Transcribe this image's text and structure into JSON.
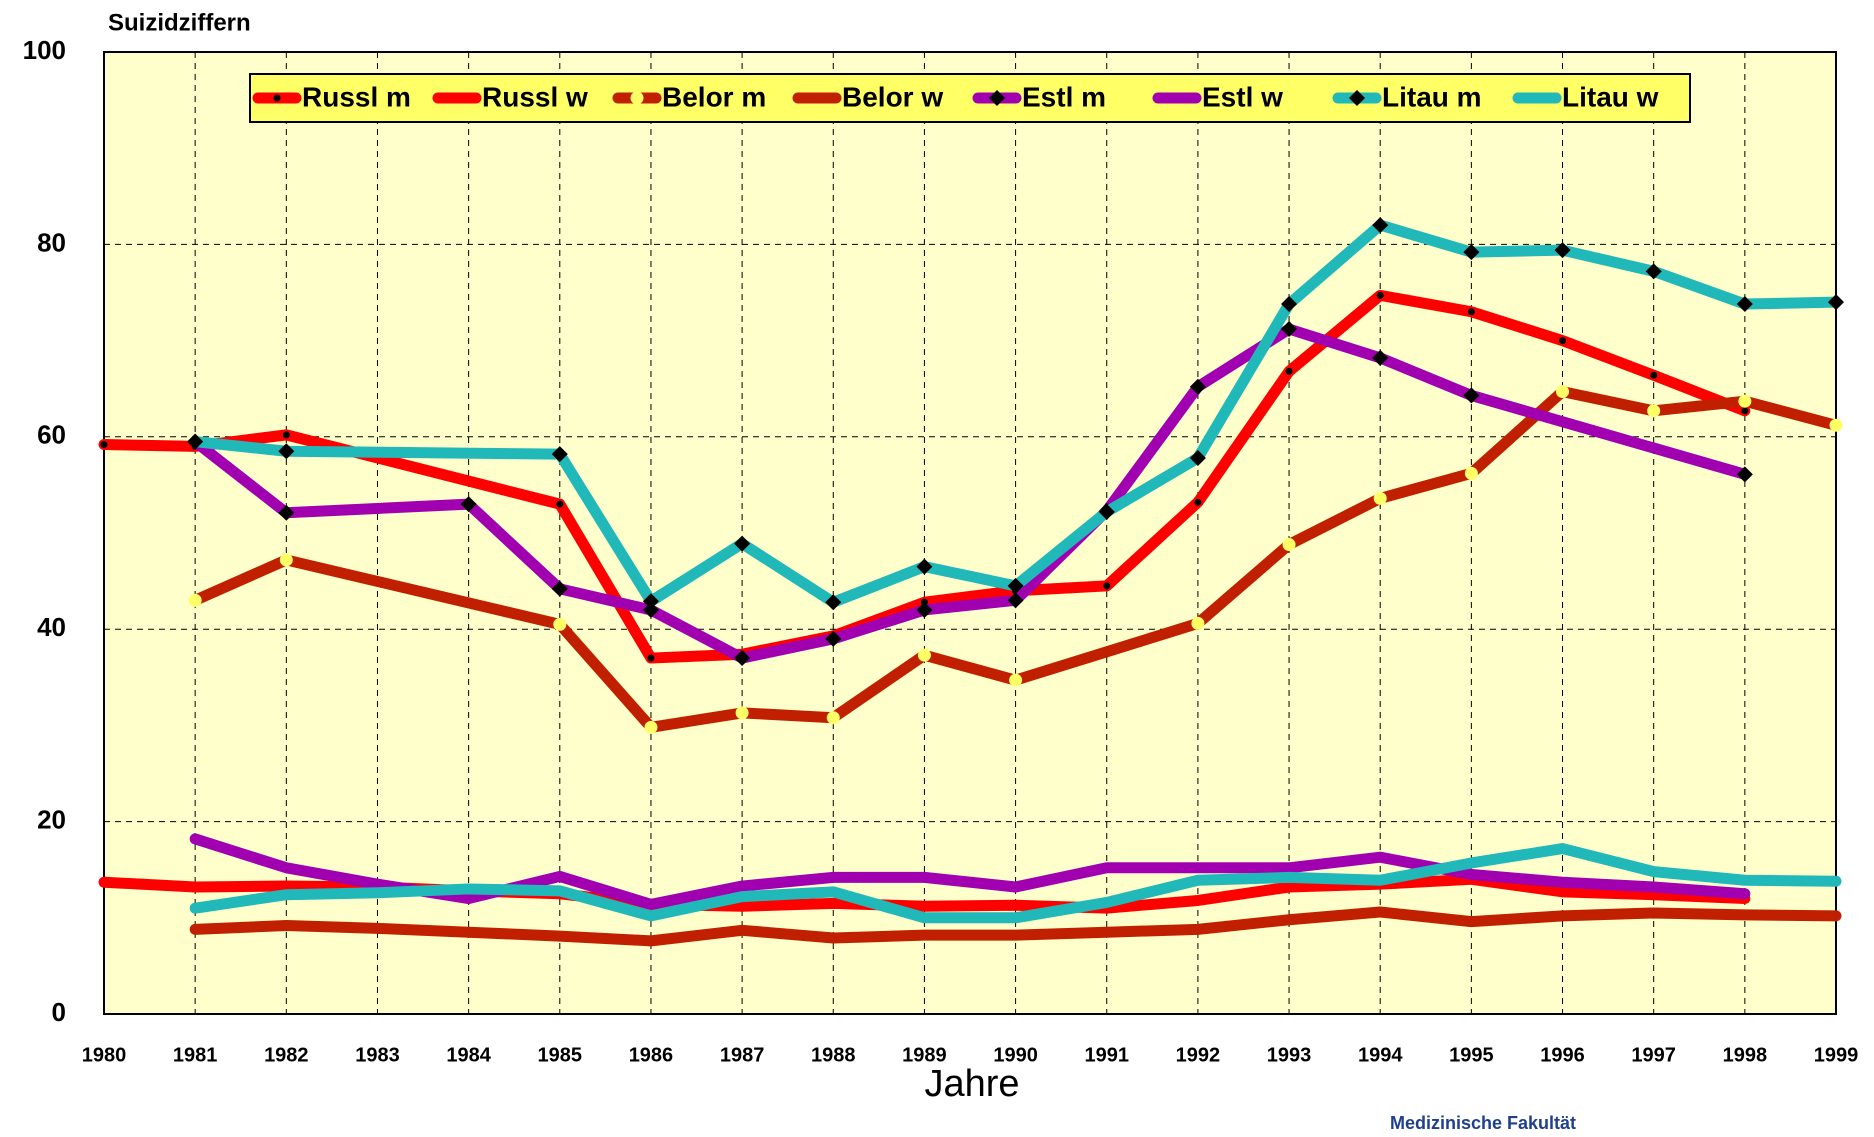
{
  "chart_data": {
    "type": "line",
    "title": "Suizidziffern",
    "xlabel": "Jahre",
    "footer": "Medizinische Fakultät",
    "xlim": [
      1980,
      1999
    ],
    "xticks": [
      1980,
      1981,
      1982,
      1983,
      1984,
      1985,
      1986,
      1987,
      1988,
      1989,
      1990,
      1991,
      1992,
      1993,
      1994,
      1995,
      1996,
      1997,
      1998,
      1999
    ],
    "ylim": [
      0,
      100
    ],
    "yticks": [
      0,
      20,
      40,
      60,
      80,
      100
    ],
    "grid": true,
    "legend": "top",
    "series": [
      {
        "name": "Russl m",
        "color": "#ff0000",
        "marker": "dot",
        "marker_color": "#000000",
        "x": [
          1980,
          1981,
          1982,
          1985,
          1986,
          1987,
          1988,
          1989,
          1990,
          1991,
          1992,
          1993,
          1994,
          1995,
          1996,
          1997,
          1998
        ],
        "values": [
          59.2,
          59,
          60.2,
          53,
          37,
          37.4,
          39.3,
          42.8,
          44,
          44.5,
          53.2,
          66.8,
          74.7,
          73,
          70,
          66.4,
          62.7
        ]
      },
      {
        "name": "Russl w",
        "color": "#ff0000",
        "x": [
          1980,
          1981,
          1982,
          1983,
          1984,
          1985,
          1986,
          1987,
          1988,
          1989,
          1990,
          1991,
          1992,
          1993,
          1994,
          1995,
          1996,
          1997,
          1998
        ],
        "values": [
          13.7,
          13.2,
          13.3,
          13.2,
          12.8,
          12.5,
          11.4,
          11.2,
          11.5,
          11.2,
          11.3,
          11,
          11.8,
          13.2,
          13.5,
          14,
          12.7,
          12.4,
          12
        ]
      },
      {
        "name": "Belor m",
        "color": "#c02000",
        "marker": "circle",
        "marker_color": "#ffff66",
        "x": [
          1981,
          1982,
          1985,
          1986,
          1987,
          1988,
          1989,
          1990,
          1992,
          1993,
          1994,
          1995,
          1996,
          1997,
          1998,
          1999
        ],
        "values": [
          43,
          47.2,
          40.5,
          29.8,
          31.3,
          30.8,
          37.3,
          34.7,
          40.6,
          48.8,
          53.6,
          56.2,
          64.7,
          62.7,
          63.7,
          61.2
        ]
      },
      {
        "name": "Belor w",
        "color": "#c02000",
        "x": [
          1981,
          1982,
          1983,
          1984,
          1985,
          1986,
          1987,
          1988,
          1989,
          1990,
          1991,
          1992,
          1993,
          1994,
          1995,
          1996,
          1997,
          1998,
          1999
        ],
        "values": [
          8.8,
          9.2,
          8.9,
          8.5,
          8.1,
          7.6,
          8.7,
          7.9,
          8.2,
          8.2,
          8.5,
          8.8,
          9.8,
          10.6,
          9.6,
          10.2,
          10.5,
          10.3,
          10.2
        ]
      },
      {
        "name": "Estl m",
        "color": "#a000b0",
        "marker": "diamond",
        "marker_color": "#000000",
        "x": [
          1981,
          1982,
          1984,
          1985,
          1986,
          1987,
          1988,
          1989,
          1990,
          1991,
          1992,
          1993,
          1994,
          1995,
          1998
        ],
        "values": [
          59.5,
          52.1,
          53,
          44.2,
          42,
          37,
          39,
          42,
          43,
          52.3,
          65.2,
          71.2,
          68.2,
          64.3,
          56.1
        ]
      },
      {
        "name": "Estl w",
        "color": "#a000b0",
        "x": [
          1981,
          1982,
          1983,
          1984,
          1985,
          1986,
          1987,
          1988,
          1989,
          1990,
          1991,
          1992,
          1993,
          1994,
          1995,
          1996,
          1997,
          1998
        ],
        "values": [
          18.2,
          15.2,
          13.5,
          12,
          14.3,
          11.4,
          13.3,
          14.2,
          14.2,
          13.2,
          15.2,
          15.2,
          15.2,
          16.3,
          14.5,
          13.7,
          13.2,
          12.5
        ]
      },
      {
        "name": "Litau m",
        "color": "#20b8b8",
        "marker": "diamond",
        "marker_color": "#000000",
        "x": [
          1981,
          1982,
          1985,
          1986,
          1987,
          1988,
          1989,
          1990,
          1991,
          1992,
          1993,
          1994,
          1995,
          1996,
          1997,
          1998,
          1999
        ],
        "values": [
          59.5,
          58.5,
          58.2,
          42.9,
          48.9,
          42.8,
          46.5,
          44.5,
          52.2,
          57.8,
          73.8,
          82,
          79.2,
          79.4,
          77.2,
          73.8,
          74
        ]
      },
      {
        "name": "Litau w",
        "color": "#20b8b8",
        "x": [
          1981,
          1982,
          1983,
          1984,
          1985,
          1986,
          1987,
          1988,
          1989,
          1990,
          1991,
          1992,
          1993,
          1994,
          1995,
          1996,
          1997,
          1998,
          1999
        ],
        "values": [
          11,
          12.4,
          12.6,
          13,
          12.8,
          10.2,
          12.2,
          12.7,
          10,
          10,
          11.6,
          13.9,
          14.2,
          13.9,
          15.7,
          17.2,
          14.8,
          13.9,
          13.8
        ]
      }
    ]
  }
}
